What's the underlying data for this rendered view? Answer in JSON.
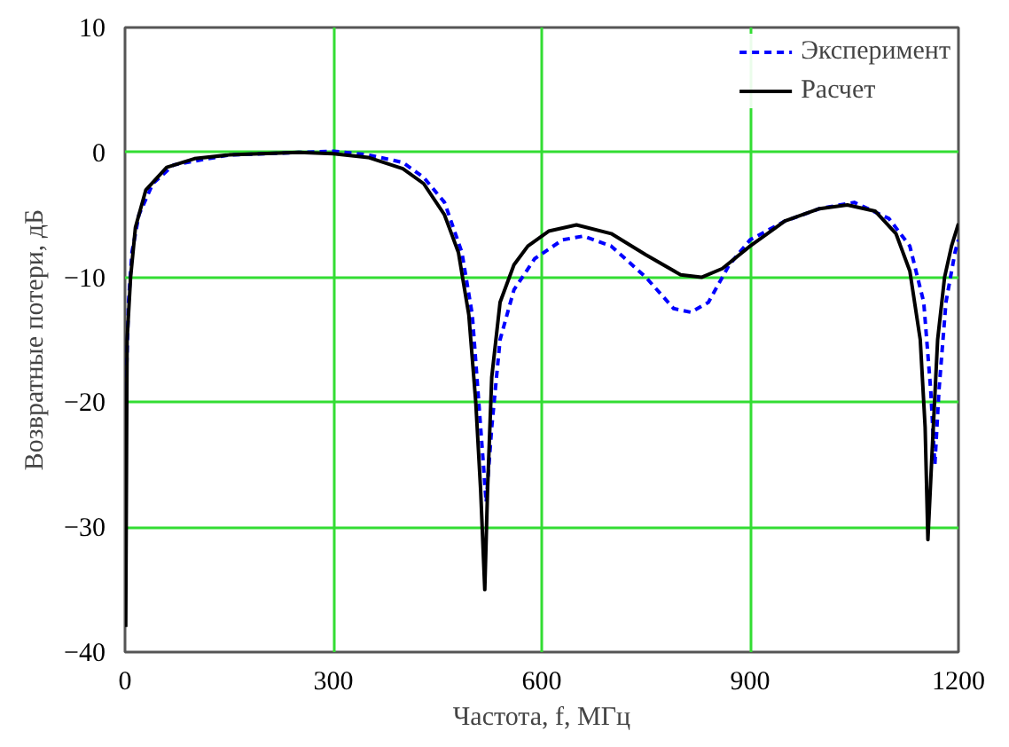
{
  "chart_data": {
    "type": "line",
    "xlabel": "Частота, f, МГц",
    "ylabel": "Возвратные потери, дБ",
    "xlim": [
      0,
      1200
    ],
    "ylim": [
      -40,
      10
    ],
    "xticks": [
      0,
      300,
      600,
      900,
      1200
    ],
    "yticks": [
      -40,
      -30,
      -20,
      -10,
      0,
      10
    ],
    "grid": true,
    "legend": "top right",
    "marker": "none",
    "series": [
      {
        "name": "Эксперимент",
        "color": "#0000ff",
        "line_style": "dashed",
        "x": [
          1,
          5,
          10,
          20,
          40,
          70,
          150,
          250,
          300,
          350,
          400,
          430,
          460,
          485,
          500,
          512,
          520,
          528,
          540,
          560,
          590,
          630,
          660,
          700,
          750,
          790,
          815,
          840,
          870,
          900,
          950,
          1000,
          1050,
          1100,
          1130,
          1150,
          1160,
          1166,
          1172,
          1182,
          1195,
          1200
        ],
        "values": [
          -20,
          -12,
          -8,
          -5,
          -2.5,
          -1,
          -0.2,
          0,
          0.1,
          -0.2,
          -0.8,
          -2,
          -4,
          -8,
          -13,
          -22,
          -28,
          -22,
          -15,
          -11,
          -8.5,
          -7,
          -6.7,
          -7.5,
          -10,
          -12.5,
          -12.8,
          -12,
          -9,
          -7,
          -5.5,
          -4.5,
          -4,
          -5.3,
          -7.5,
          -12,
          -19,
          -25,
          -19,
          -12,
          -8,
          -7
        ]
      },
      {
        "name": "Расчет",
        "color": "#000000",
        "line_style": "solid",
        "x": [
          1,
          3,
          8,
          15,
          30,
          60,
          100,
          150,
          250,
          300,
          350,
          400,
          430,
          460,
          480,
          495,
          505,
          512,
          518,
          522,
          528,
          540,
          560,
          580,
          610,
          650,
          700,
          750,
          800,
          830,
          860,
          900,
          950,
          1000,
          1040,
          1080,
          1110,
          1130,
          1145,
          1152,
          1156,
          1162,
          1170,
          1180,
          1190,
          1200
        ],
        "values": [
          -38,
          -15,
          -10,
          -6,
          -3,
          -1.2,
          -0.5,
          -0.2,
          0,
          -0.1,
          -0.4,
          -1.3,
          -2.5,
          -5,
          -8,
          -13,
          -20,
          -27,
          -35,
          -27,
          -18,
          -12,
          -9,
          -7.5,
          -6.3,
          -5.8,
          -6.5,
          -8.2,
          -9.8,
          -10,
          -9.3,
          -7.5,
          -5.5,
          -4.5,
          -4.2,
          -4.7,
          -6.5,
          -9.5,
          -15,
          -22,
          -31,
          -24,
          -15,
          -10,
          -7.5,
          -5.7
        ]
      }
    ]
  }
}
